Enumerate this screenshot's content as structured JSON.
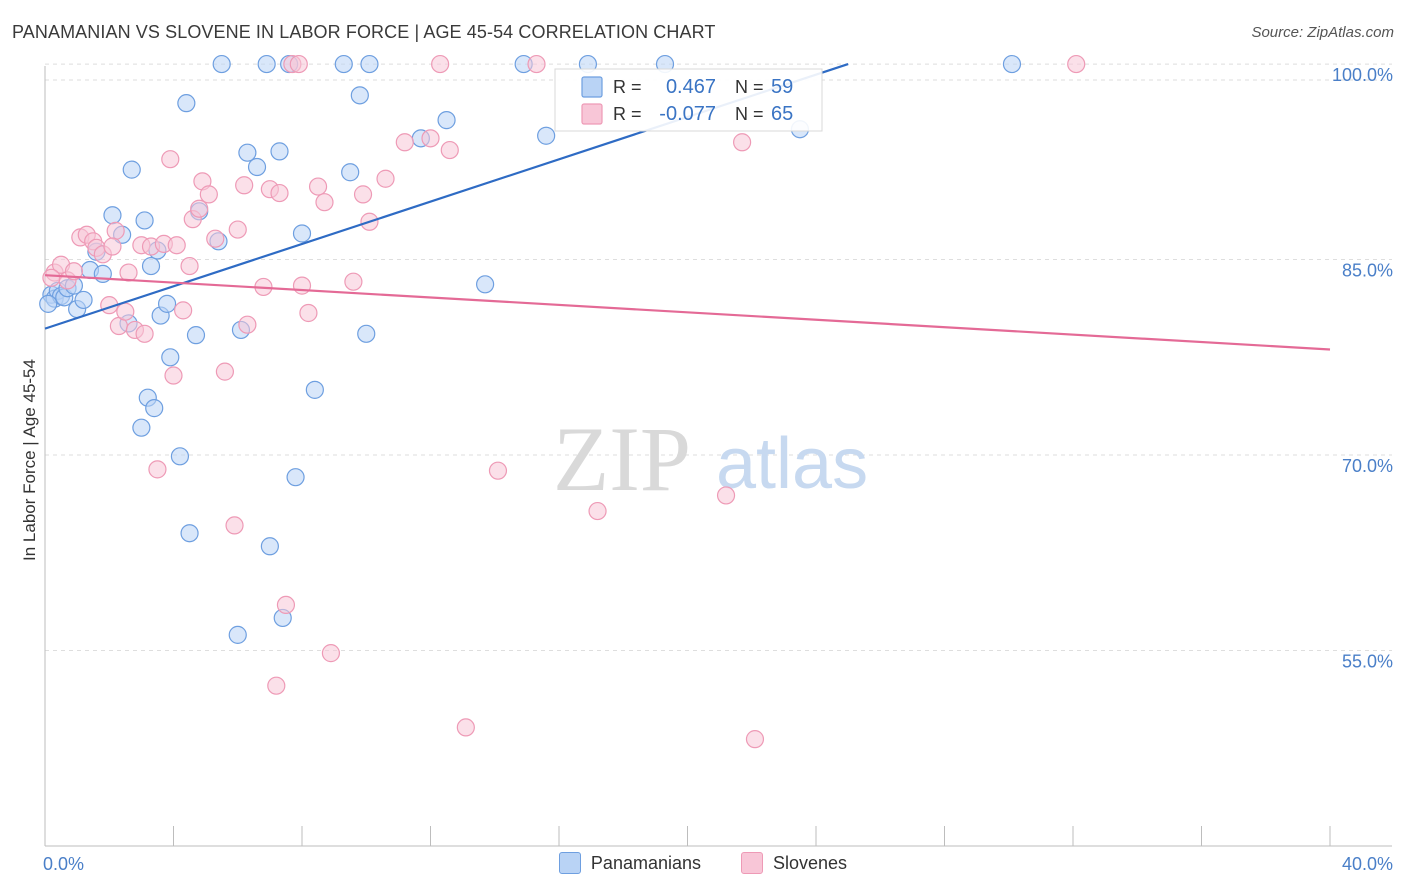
{
  "header": {
    "title": "PANAMANIAN VS SLOVENE IN LABOR FORCE | AGE 45-54 CORRELATION CHART",
    "source": "Source: ZipAtlas.com"
  },
  "watermark": {
    "zip": "ZIP",
    "atlas": "atlas"
  },
  "chart_data": {
    "type": "scatter",
    "title": "PANAMANIAN VS SLOVENE IN LABOR FORCE | AGE 45-54 CORRELATION CHART",
    "xlabel": "",
    "ylabel": "In Labor Force | Age 45-54",
    "xlim": [
      0,
      40
    ],
    "ylim": [
      40,
      102
    ],
    "x_tick_labels": [
      "0.0%",
      "40.0%"
    ],
    "y_ticks": [
      55,
      70,
      85,
      100
    ],
    "y_tick_labels": [
      "55.0%",
      "70.0%",
      "85.0%",
      "100.0%"
    ],
    "grid": true,
    "legend_position": "bottom",
    "stats_box": [
      {
        "r_label": "R =",
        "r_value": "0.467",
        "n_label": "N =",
        "n_value": "59"
      },
      {
        "r_label": "R =",
        "r_value": "-0.077",
        "n_label": "N =",
        "n_value": "65"
      }
    ],
    "series": [
      {
        "name": "Panamanians",
        "color": "#6e9fe0",
        "fill": "#b9d3f5",
        "line_color": "#2e6bc4",
        "trend": {
          "x": [
            0,
            25
          ],
          "y": [
            79.7,
            100
          ]
        },
        "points": [
          [
            0.2,
            82.3
          ],
          [
            0.3,
            82.0
          ],
          [
            0.4,
            82.6
          ],
          [
            0.5,
            82.2
          ],
          [
            0.6,
            82.1
          ],
          [
            0.7,
            82.8
          ],
          [
            0.9,
            83.0
          ],
          [
            1.0,
            81.2
          ],
          [
            1.2,
            81.9
          ],
          [
            1.4,
            84.2
          ],
          [
            1.6,
            85.6
          ],
          [
            1.8,
            83.9
          ],
          [
            2.1,
            88.4
          ],
          [
            2.4,
            86.9
          ],
          [
            2.6,
            80.1
          ],
          [
            2.7,
            91.9
          ],
          [
            3.0,
            72.1
          ],
          [
            3.1,
            88.0
          ],
          [
            3.2,
            74.4
          ],
          [
            3.3,
            84.5
          ],
          [
            3.4,
            73.6
          ],
          [
            3.5,
            85.7
          ],
          [
            3.6,
            80.7
          ],
          [
            3.8,
            81.6
          ],
          [
            3.9,
            77.5
          ],
          [
            4.2,
            69.9
          ],
          [
            4.4,
            97.0
          ],
          [
            4.5,
            64.0
          ],
          [
            4.7,
            79.2
          ],
          [
            4.8,
            88.7
          ],
          [
            5.4,
            86.4
          ],
          [
            5.5,
            100.0
          ],
          [
            6.0,
            56.2
          ],
          [
            6.1,
            79.6
          ],
          [
            6.3,
            93.2
          ],
          [
            6.6,
            92.1
          ],
          [
            6.9,
            100.0
          ],
          [
            7.0,
            63.0
          ],
          [
            7.3,
            93.3
          ],
          [
            7.4,
            57.5
          ],
          [
            7.6,
            100.0
          ],
          [
            7.8,
            68.3
          ],
          [
            8.0,
            87.0
          ],
          [
            8.4,
            75.0
          ],
          [
            9.3,
            100.0
          ],
          [
            9.5,
            91.7
          ],
          [
            9.8,
            97.6
          ],
          [
            10.0,
            79.3
          ],
          [
            10.1,
            100.0
          ],
          [
            11.7,
            94.3
          ],
          [
            12.5,
            95.7
          ],
          [
            13.7,
            83.1
          ],
          [
            14.9,
            100.0
          ],
          [
            15.6,
            94.5
          ],
          [
            16.9,
            100.0
          ],
          [
            19.3,
            100.0
          ],
          [
            23.5,
            95.0
          ],
          [
            30.1,
            100.0
          ],
          [
            0.1,
            81.6
          ]
        ]
      },
      {
        "name": "Slovenes",
        "color": "#ee9ab6",
        "fill": "#f8c6d7",
        "line_color": "#e46a96",
        "trend": {
          "x": [
            0,
            40
          ],
          "y": [
            83.8,
            78.1
          ]
        },
        "points": [
          [
            0.3,
            84.0
          ],
          [
            0.5,
            84.6
          ],
          [
            0.7,
            83.4
          ],
          [
            0.9,
            84.1
          ],
          [
            1.1,
            86.7
          ],
          [
            1.3,
            86.9
          ],
          [
            1.5,
            86.4
          ],
          [
            1.6,
            85.9
          ],
          [
            1.8,
            85.4
          ],
          [
            2.0,
            81.5
          ],
          [
            2.2,
            87.2
          ],
          [
            2.3,
            79.9
          ],
          [
            2.5,
            81.0
          ],
          [
            2.6,
            84.0
          ],
          [
            2.8,
            79.6
          ],
          [
            3.0,
            86.1
          ],
          [
            3.1,
            79.3
          ],
          [
            3.3,
            86.0
          ],
          [
            3.5,
            68.9
          ],
          [
            3.7,
            86.2
          ],
          [
            3.9,
            92.7
          ],
          [
            4.0,
            76.1
          ],
          [
            4.1,
            86.1
          ],
          [
            4.3,
            81.1
          ],
          [
            4.5,
            84.5
          ],
          [
            4.6,
            88.1
          ],
          [
            4.8,
            88.9
          ],
          [
            4.9,
            91.0
          ],
          [
            5.1,
            90.0
          ],
          [
            5.3,
            86.6
          ],
          [
            5.6,
            76.4
          ],
          [
            5.9,
            64.6
          ],
          [
            6.0,
            87.3
          ],
          [
            6.2,
            90.7
          ],
          [
            6.3,
            80.0
          ],
          [
            6.8,
            82.9
          ],
          [
            7.0,
            90.4
          ],
          [
            7.2,
            52.3
          ],
          [
            7.3,
            90.1
          ],
          [
            7.5,
            58.5
          ],
          [
            7.7,
            100.0
          ],
          [
            7.9,
            100.0
          ],
          [
            8.0,
            83.0
          ],
          [
            8.2,
            80.9
          ],
          [
            8.5,
            90.6
          ],
          [
            8.7,
            89.4
          ],
          [
            8.9,
            54.8
          ],
          [
            9.6,
            83.3
          ],
          [
            9.9,
            90.0
          ],
          [
            10.1,
            87.9
          ],
          [
            10.6,
            91.2
          ],
          [
            11.2,
            94.0
          ],
          [
            12.0,
            94.3
          ],
          [
            12.3,
            100.0
          ],
          [
            12.6,
            93.4
          ],
          [
            13.1,
            49.1
          ],
          [
            14.1,
            68.8
          ],
          [
            15.3,
            100.0
          ],
          [
            17.2,
            65.7
          ],
          [
            21.2,
            66.9
          ],
          [
            21.7,
            94.0
          ],
          [
            22.1,
            48.2
          ],
          [
            32.1,
            100.0
          ],
          [
            0.2,
            83.6
          ],
          [
            2.1,
            86.0
          ]
        ]
      }
    ]
  }
}
